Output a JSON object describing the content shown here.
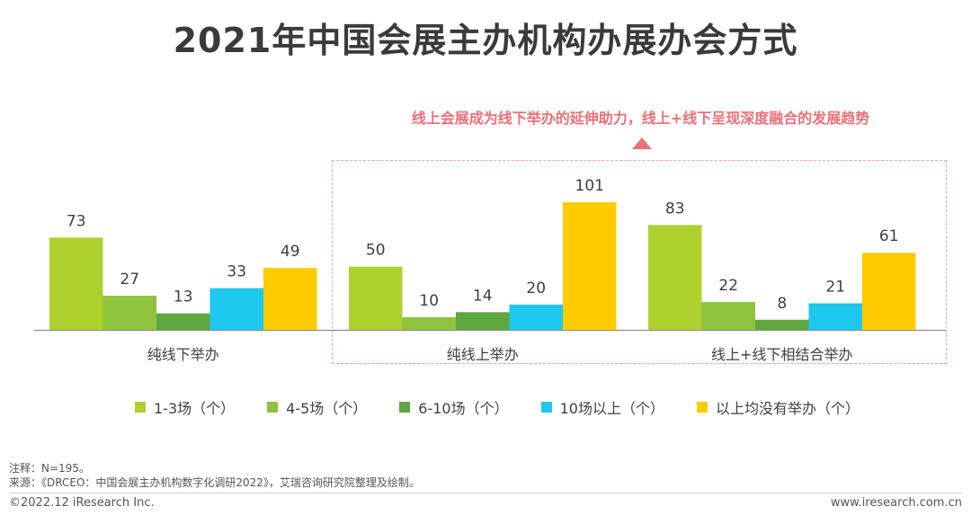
{
  "title": "2021年中国会展主办机构办展办会方式",
  "callout": "线上会展成为线下举办的延伸助力，线上+线下呈现深度融合的发展趋势",
  "chart_data": {
    "type": "bar",
    "categories": [
      "纯线下举办",
      "纯线上举办",
      "线上+线下相结合举办"
    ],
    "series": [
      {
        "name": "1-3场（个）",
        "color": "#aed130",
        "values": [
          73,
          50,
          83
        ]
      },
      {
        "name": "4-5场（个）",
        "color": "#8fc43e",
        "values": [
          27,
          10,
          22
        ]
      },
      {
        "name": "6-10场（个）",
        "color": "#5ea83f",
        "values": [
          13,
          14,
          8
        ]
      },
      {
        "name": "10场以上（个）",
        "color": "#1ec8ee",
        "values": [
          33,
          20,
          21
        ]
      },
      {
        "name": "以上均没有举办（个）",
        "color": "#ffcc00",
        "values": [
          49,
          101,
          61
        ]
      }
    ],
    "ylim": [
      0,
      101
    ],
    "title": "2021年中国会展主办机构办展办会方式",
    "xlabel": "",
    "ylabel": "",
    "grid": false,
    "legend": "bottom"
  },
  "notes": {
    "line1": "注释：N=195。",
    "line2": "来源：《DRCEO：中国会展主办机构数字化调研2022》，艾瑞咨询研究院整理及绘制。"
  },
  "footer": {
    "left": "©2022.12 iResearch Inc.",
    "right": "www.iresearch.com.cn"
  }
}
